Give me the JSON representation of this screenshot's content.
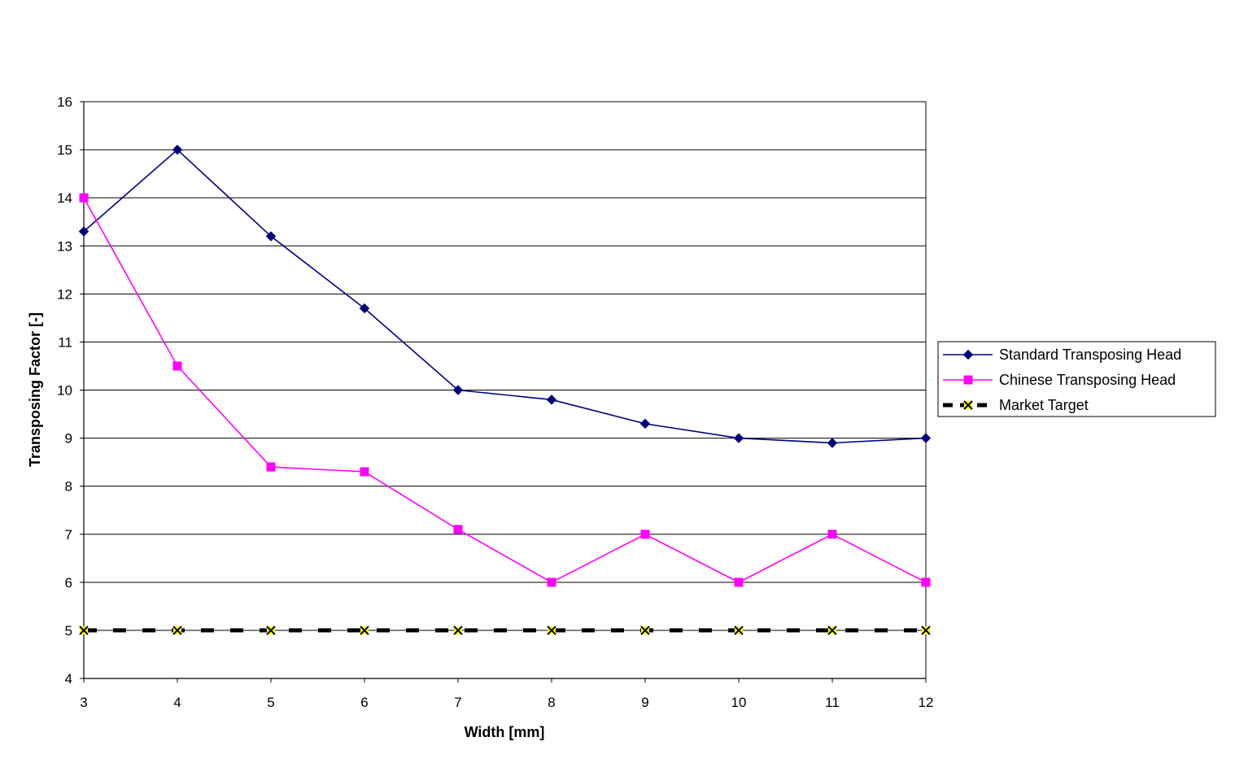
{
  "chart_data": {
    "type": "line",
    "title": "",
    "xlabel": "Width [mm]",
    "ylabel": "Transposing Factor [-]",
    "x": [
      3,
      4,
      5,
      6,
      7,
      8,
      9,
      10,
      11,
      12
    ],
    "xlim": [
      3,
      12
    ],
    "ylim": [
      4,
      16
    ],
    "y_ticks": [
      4,
      5,
      6,
      7,
      8,
      9,
      10,
      11,
      12,
      13,
      14,
      15,
      16
    ],
    "grid": "horizontal",
    "legend_position": "right",
    "series": [
      {
        "name": "Standard Transposing Head",
        "color": "#000080",
        "marker": "diamond",
        "line_style": "solid",
        "values": [
          13.3,
          15.0,
          13.2,
          11.7,
          10.0,
          9.8,
          9.3,
          9.0,
          8.9,
          9.0
        ]
      },
      {
        "name": "Chinese Transposing Head",
        "color": "#FF00FF",
        "marker": "square",
        "line_style": "solid",
        "values": [
          14.0,
          10.5,
          8.4,
          8.3,
          7.1,
          6.0,
          7.0,
          6.0,
          7.0,
          6.0
        ]
      },
      {
        "name": "Market Target",
        "color": "#000000",
        "marker_color": "#FFFF00",
        "marker": "x",
        "line_style": "dashed",
        "values": [
          5,
          5,
          5,
          5,
          5,
          5,
          5,
          5,
          5,
          5
        ]
      }
    ]
  }
}
